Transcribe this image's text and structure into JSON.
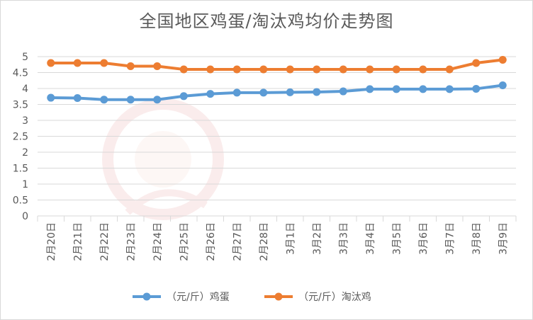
{
  "chart_data": {
    "type": "line",
    "title": "全国地区鸡蛋/淘汰鸡均价走势图",
    "categories": [
      "2月20日",
      "2月21日",
      "2月22日",
      "2月23日",
      "2月24日",
      "2月25日",
      "2月26日",
      "2月27日",
      "2月28日",
      "3月1日",
      "3月2日",
      "3月3日",
      "3月4日",
      "3月5日",
      "3月6日",
      "3月7日",
      "3月8日",
      "3月9日"
    ],
    "series": [
      {
        "name": "（元/斤）鸡蛋",
        "color": "#5b9bd5",
        "values": [
          3.71,
          3.7,
          3.65,
          3.65,
          3.65,
          3.76,
          3.83,
          3.87,
          3.87,
          3.88,
          3.89,
          3.91,
          3.98,
          3.98,
          3.98,
          3.98,
          3.99,
          4.1
        ]
      },
      {
        "name": "（元/斤）淘汰鸡",
        "color": "#ed7d31",
        "values": [
          4.8,
          4.8,
          4.8,
          4.7,
          4.7,
          4.6,
          4.6,
          4.6,
          4.6,
          4.6,
          4.6,
          4.6,
          4.6,
          4.6,
          4.6,
          4.6,
          4.8,
          4.9
        ]
      }
    ],
    "ylim": [
      0,
      5
    ],
    "yticks": [
      "0",
      "0.5",
      "1",
      "1.5",
      "2",
      "2.5",
      "3",
      "3.5",
      "4",
      "4.5",
      "5"
    ],
    "grid": true,
    "legend_position": "bottom"
  }
}
